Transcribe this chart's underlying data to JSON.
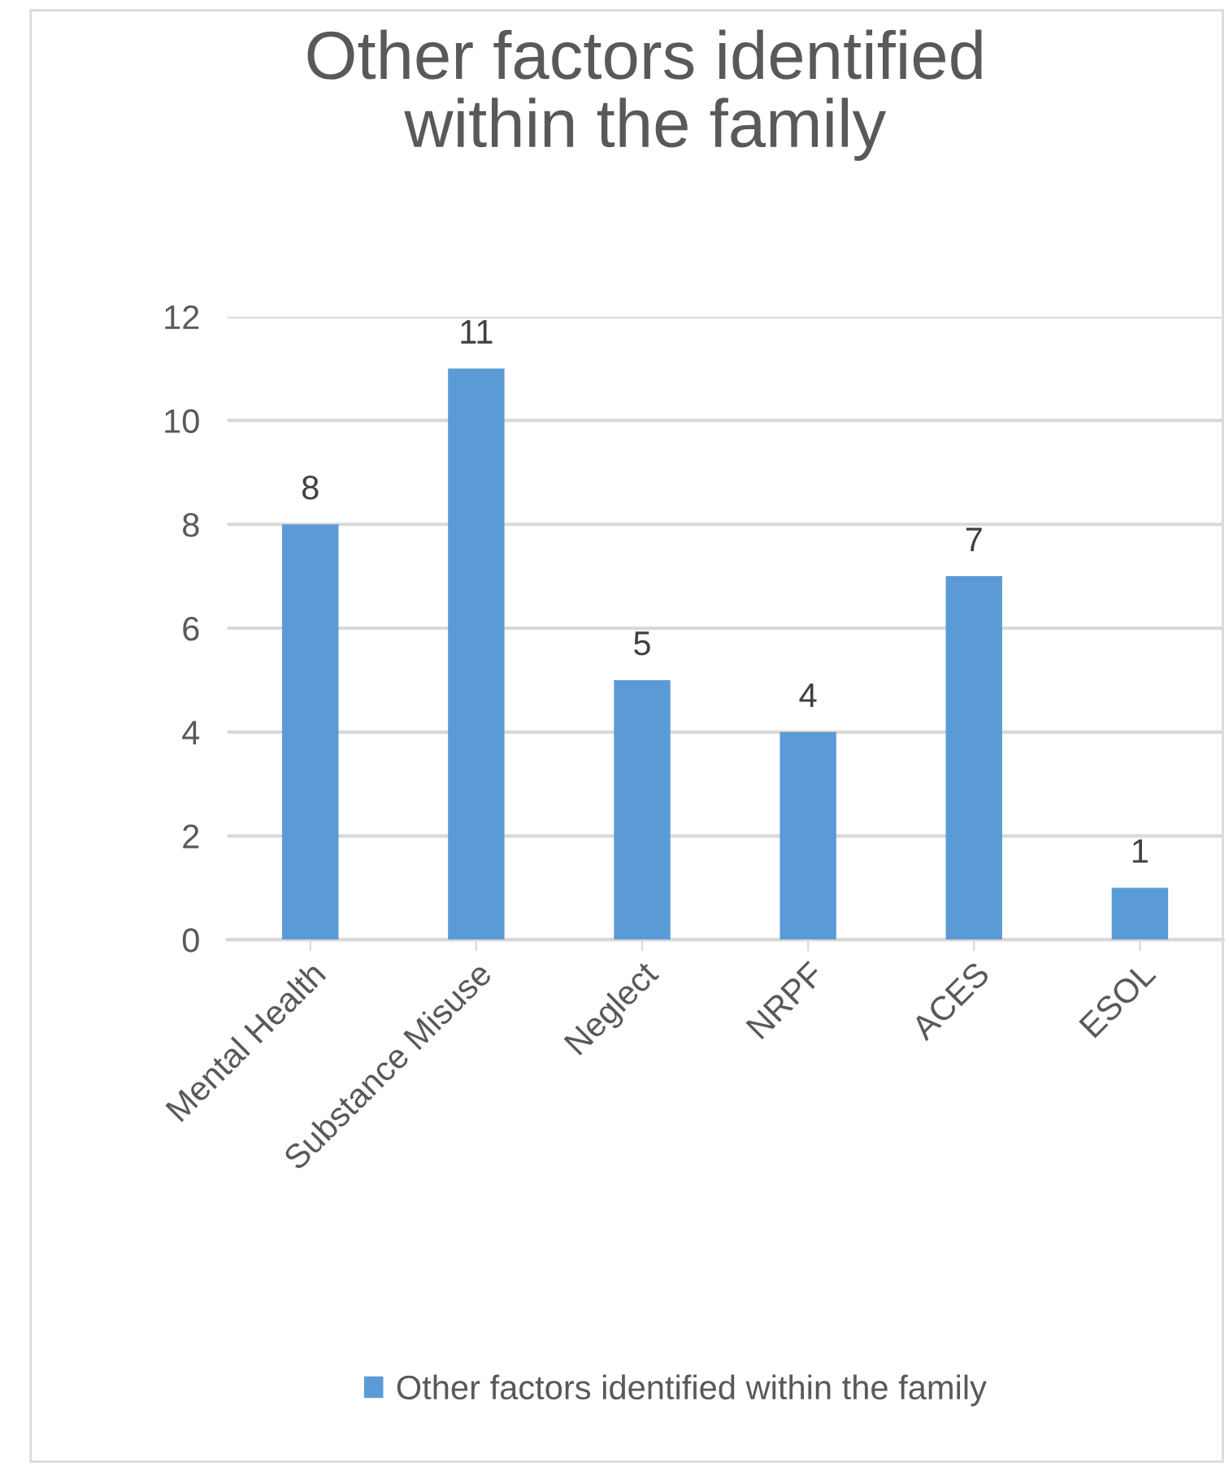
{
  "chart_data": {
    "type": "bar",
    "title": "Other factors identified\nwithin the family",
    "categories": [
      "Mental Health",
      "Substance Misuse",
      "Neglect",
      "NRPF",
      "ACES",
      "ESOL"
    ],
    "series": [
      {
        "name": "Other factors identified within the family",
        "color": "#5b9bd5",
        "values": [
          8,
          11,
          5,
          4,
          7,
          1
        ]
      }
    ],
    "ylim": [
      0,
      12
    ],
    "yticks": [
      0,
      2,
      4,
      6,
      8,
      10,
      12
    ],
    "grid": "y",
    "legend": "bottom",
    "data_labels": true
  }
}
